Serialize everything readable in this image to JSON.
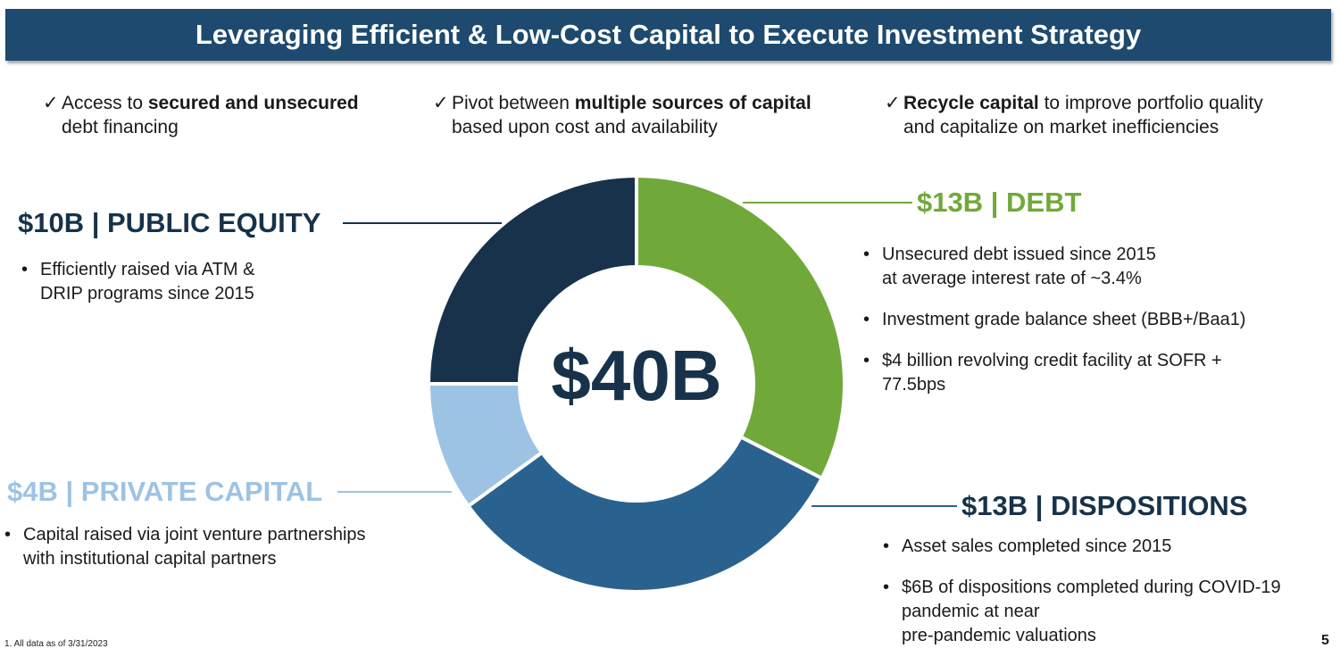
{
  "title": "Leveraging Efficient & Low-Cost Capital to Execute Investment Strategy",
  "points": [
    {
      "pre": "Access to ",
      "bold": "secured and unsecured",
      "post": "",
      "line2": "debt financing"
    },
    {
      "pre": "Pivot between ",
      "bold": "multiple sources of capital",
      "post": "",
      "line2": "based upon cost and availability"
    },
    {
      "pre": "",
      "bold": "Recycle capital",
      "post": " to improve portfolio quality",
      "line2": "and capitalize on market inefficiencies"
    }
  ],
  "check_glyph": "✓",
  "bullet_glyph": "•",
  "chart_data": {
    "type": "pie",
    "donut": true,
    "total_label": "$40B",
    "slices": [
      {
        "label": "$13B | DEBT",
        "value": 13,
        "color": "#70a93a"
      },
      {
        "label": "$13B | DISPOSITIONS",
        "value": 13,
        "color": "#2a628f"
      },
      {
        "label": "$4B | PRIVATE CAPITAL",
        "value": 4,
        "color": "#9dc3e4"
      },
      {
        "label": "$10B | PUBLIC EQUITY",
        "value": 10,
        "color": "#17324a"
      }
    ]
  },
  "segments": {
    "equity": {
      "title": "$10B | PUBLIC EQUITY",
      "bullets": [
        "Efficiently raised via ATM &\nDRIP programs since 2015"
      ]
    },
    "private": {
      "title": "$4B | PRIVATE CAPITAL",
      "bullets": [
        "Capital raised via joint venture partnerships\nwith institutional capital partners"
      ]
    },
    "debt": {
      "title": "$13B | DEBT",
      "bullets": [
        "Unsecured debt issued since 2015\nat average interest rate of ~3.4%",
        "Investment grade balance sheet (BBB+/Baa1)",
        "$4 billion revolving credit facility at SOFR +\n77.5bps"
      ]
    },
    "dispositions": {
      "title": "$13B | DISPOSITIONS",
      "bullets": [
        "Asset sales completed since 2015",
        "$6B of dispositions completed during COVID-19\npandemic at near\npre-pandemic valuations"
      ]
    }
  },
  "footnote": "1. All data as of 3/31/2023",
  "page_number": "5"
}
